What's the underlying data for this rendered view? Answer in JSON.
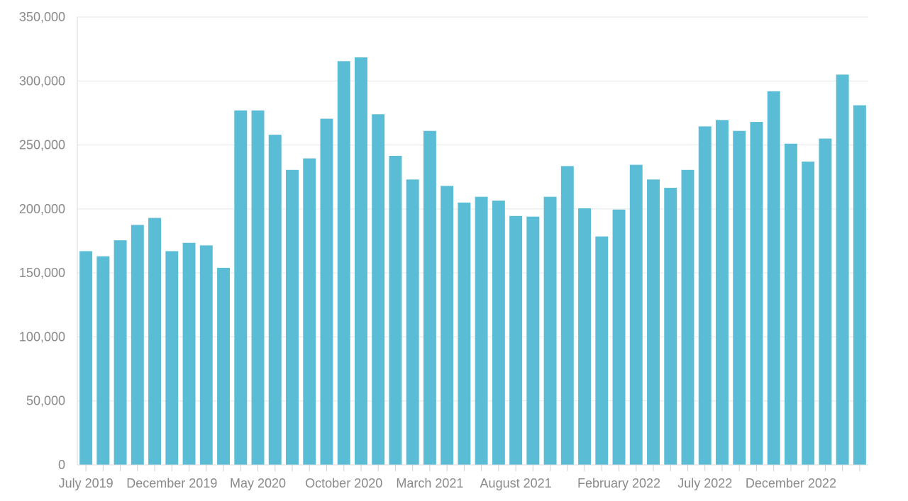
{
  "chart_data": {
    "type": "bar",
    "title": "",
    "xlabel": "",
    "ylabel": "",
    "ylim": [
      0,
      350000
    ],
    "grid": true,
    "bar_color": "#5bbcd6",
    "y_ticks": [
      0,
      50000,
      100000,
      150000,
      200000,
      250000,
      300000,
      350000
    ],
    "y_tick_labels": [
      "0",
      "50,000",
      "100,000",
      "150,000",
      "200,000",
      "250,000",
      "300,000",
      "350,000"
    ],
    "categories": [
      "Jul 2019",
      "Aug 2019",
      "Sep 2019",
      "Oct 2019",
      "Nov 2019",
      "Dec 2019",
      "Jan 2020",
      "Feb 2020",
      "Mar 2020",
      "Apr 2020",
      "May 2020",
      "Jun 2020",
      "Jul 2020",
      "Aug 2020",
      "Sep 2020",
      "Oct 2020",
      "Nov 2020",
      "Dec 2020",
      "Jan 2021",
      "Feb 2021",
      "Mar 2021",
      "Apr 2021",
      "May 2021",
      "Jun 2021",
      "Jul 2021",
      "Aug 2021",
      "Sep 2021",
      "Oct 2021",
      "Nov 2021",
      "Dec 2021",
      "Jan 2022",
      "Feb 2022",
      "Mar 2022",
      "Apr 2022",
      "May 2022",
      "Jun 2022",
      "Jul 2022",
      "Aug 2022",
      "Sep 2022",
      "Oct 2022",
      "Nov 2022",
      "Dec 2022",
      "Jan 2023",
      "Feb 2023",
      "Mar 2023",
      "Apr 2023"
    ],
    "values": [
      167000,
      163000,
      175500,
      187500,
      193000,
      167000,
      173500,
      171500,
      154000,
      277000,
      277000,
      258000,
      230500,
      239500,
      270500,
      315500,
      318500,
      274000,
      241500,
      223000,
      261000,
      218000,
      205000,
      209500,
      206500,
      194500,
      194000,
      209500,
      233500,
      200500,
      178500,
      199500,
      234500,
      223000,
      216500,
      230500,
      264500,
      269500,
      261000,
      268000,
      292000,
      251000,
      237000,
      255000,
      305000,
      281000
    ],
    "x_tick_labels": [
      {
        "index": 0,
        "label": "July 2019"
      },
      {
        "index": 5,
        "label": "December 2019"
      },
      {
        "index": 10,
        "label": "May 2020"
      },
      {
        "index": 15,
        "label": "October 2020"
      },
      {
        "index": 20,
        "label": "March 2021"
      },
      {
        "index": 25,
        "label": "August 2021"
      },
      {
        "index": 31,
        "label": "February 2022"
      },
      {
        "index": 36,
        "label": "July 2022"
      },
      {
        "index": 41,
        "label": "December 2022"
      }
    ]
  }
}
